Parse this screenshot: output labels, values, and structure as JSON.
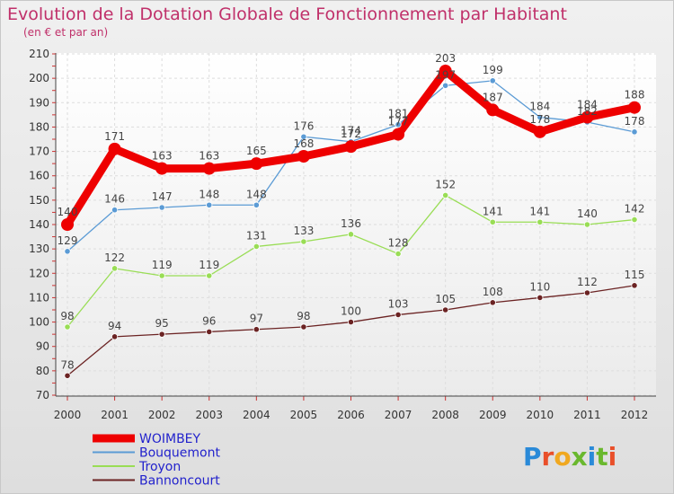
{
  "title": "Evolution de la Dotation Globale de Fonctionnement par Habitant",
  "subtitle": "(en € et par an)",
  "logo": "Proxiti",
  "chart_data": {
    "type": "line",
    "categories": [
      "2000",
      "2001",
      "2002",
      "2003",
      "2004",
      "2005",
      "2006",
      "2007",
      "2008",
      "2009",
      "2010",
      "2011",
      "2012"
    ],
    "ylim": [
      70,
      210
    ],
    "yticks": [
      70,
      80,
      90,
      100,
      110,
      120,
      130,
      140,
      150,
      160,
      170,
      180,
      190,
      200,
      210
    ],
    "grid": true,
    "legend_position": "bottom-left",
    "series": [
      {
        "name": "WOIMBEY",
        "color": "#ee0000",
        "values": [
          140,
          171,
          163,
          163,
          165,
          168,
          172,
          177,
          203,
          187,
          178,
          184,
          188
        ],
        "labels": [
          "140",
          "171",
          "163",
          "163",
          "165",
          "168",
          "172",
          "177",
          "203",
          "187",
          "178",
          "184",
          "188"
        ]
      },
      {
        "name": "Bouquemont",
        "color": "#5b9bd5",
        "values": [
          129,
          146,
          147,
          148,
          148,
          176,
          174,
          181,
          197,
          199,
          184,
          182,
          178
        ],
        "labels": [
          "129",
          "146",
          "147",
          "148",
          "148",
          "176",
          "174",
          "181",
          "197",
          "199",
          "184",
          "182",
          "178"
        ]
      },
      {
        "name": "Troyon",
        "color": "#99dd55",
        "values": [
          98,
          122,
          119,
          119,
          131,
          133,
          136,
          128,
          152,
          141,
          141,
          140,
          142
        ],
        "labels": [
          "98",
          "122",
          "119",
          "119",
          "131",
          "133",
          "136",
          "128",
          "152",
          "141",
          "141",
          "140",
          "142"
        ]
      },
      {
        "name": "Bannoncourt",
        "color": "#6b2323",
        "values": [
          78,
          94,
          95,
          96,
          97,
          98,
          100,
          103,
          105,
          108,
          110,
          112,
          115
        ],
        "labels": [
          "78",
          "94",
          "95",
          "96",
          "97",
          "98",
          "100",
          "103",
          "105",
          "108",
          "110",
          "112",
          "115"
        ]
      }
    ]
  }
}
